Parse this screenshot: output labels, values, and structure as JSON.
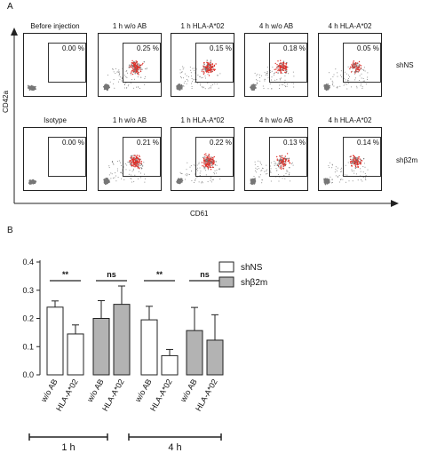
{
  "figure": {
    "panel_a_label": "A",
    "panel_b_label": "B"
  },
  "flow": {
    "x_axis_label": "CD61",
    "y_axis_label": "CD42a",
    "rows": [
      {
        "row_label": "shNS",
        "panels": [
          {
            "title": "Before injection",
            "value": "0.00 %",
            "density": 0.0
          },
          {
            "title": "1 h w/o AB",
            "value": "0.25 %",
            "density": 1.0
          },
          {
            "title": "1 h HLA-A*02",
            "value": "0.15 %",
            "density": 0.8
          },
          {
            "title": "4 h w/o AB",
            "value": "0.18 %",
            "density": 0.6
          },
          {
            "title": "4 h HLA-A*02",
            "value": "0.05 %",
            "density": 0.35
          }
        ]
      },
      {
        "row_label": "shβ2m",
        "panels": [
          {
            "title": "Isotype",
            "value": "0.00 %",
            "density": 0.0
          },
          {
            "title": "1 h w/o AB",
            "value": "0.21 %",
            "density": 0.9
          },
          {
            "title": "1 h HLA-A*02",
            "value": "0.22 %",
            "density": 1.0
          },
          {
            "title": "4 h w/o AB",
            "value": "0.13 %",
            "density": 0.55
          },
          {
            "title": "4 h HLA-A*02",
            "value": "0.14 %",
            "density": 0.6
          }
        ]
      }
    ],
    "colors": {
      "events": "#777777",
      "gated": "#e0302a"
    }
  },
  "chart_data": {
    "type": "bar",
    "categories": [
      "w/o AB",
      "HLA-A*02",
      "w/o AB",
      "HLA-A*02",
      "w/o AB",
      "HLA-A*02",
      "w/o AB",
      "HLA-A*02"
    ],
    "groups": [
      "1 h",
      "4 h"
    ],
    "series": [
      {
        "name": "shNS",
        "color": "#ffffff",
        "values": [
          0.24,
          0.145,
          null,
          null,
          0.195,
          0.068,
          null,
          null
        ],
        "errors": [
          0.022,
          0.032,
          null,
          null,
          0.048,
          0.022,
          null,
          null
        ]
      },
      {
        "name": "shβ2m",
        "color": "#b3b3b3",
        "values": [
          null,
          null,
          0.2,
          0.25,
          null,
          null,
          0.157,
          0.123
        ],
        "errors": [
          null,
          null,
          0.063,
          0.065,
          null,
          null,
          0.082,
          0.09
        ]
      }
    ],
    "yticks": [
      "0.0",
      "0.1",
      "0.2",
      "0.3",
      "0.4"
    ],
    "ylim": [
      0,
      0.4
    ],
    "significance": [
      {
        "between": [
          0,
          1
        ],
        "label": "**"
      },
      {
        "between": [
          2,
          3
        ],
        "label": "ns"
      },
      {
        "between": [
          4,
          5
        ],
        "label": "**"
      },
      {
        "between": [
          6,
          7
        ],
        "label": "ns"
      }
    ],
    "legend_position": "top-right"
  }
}
